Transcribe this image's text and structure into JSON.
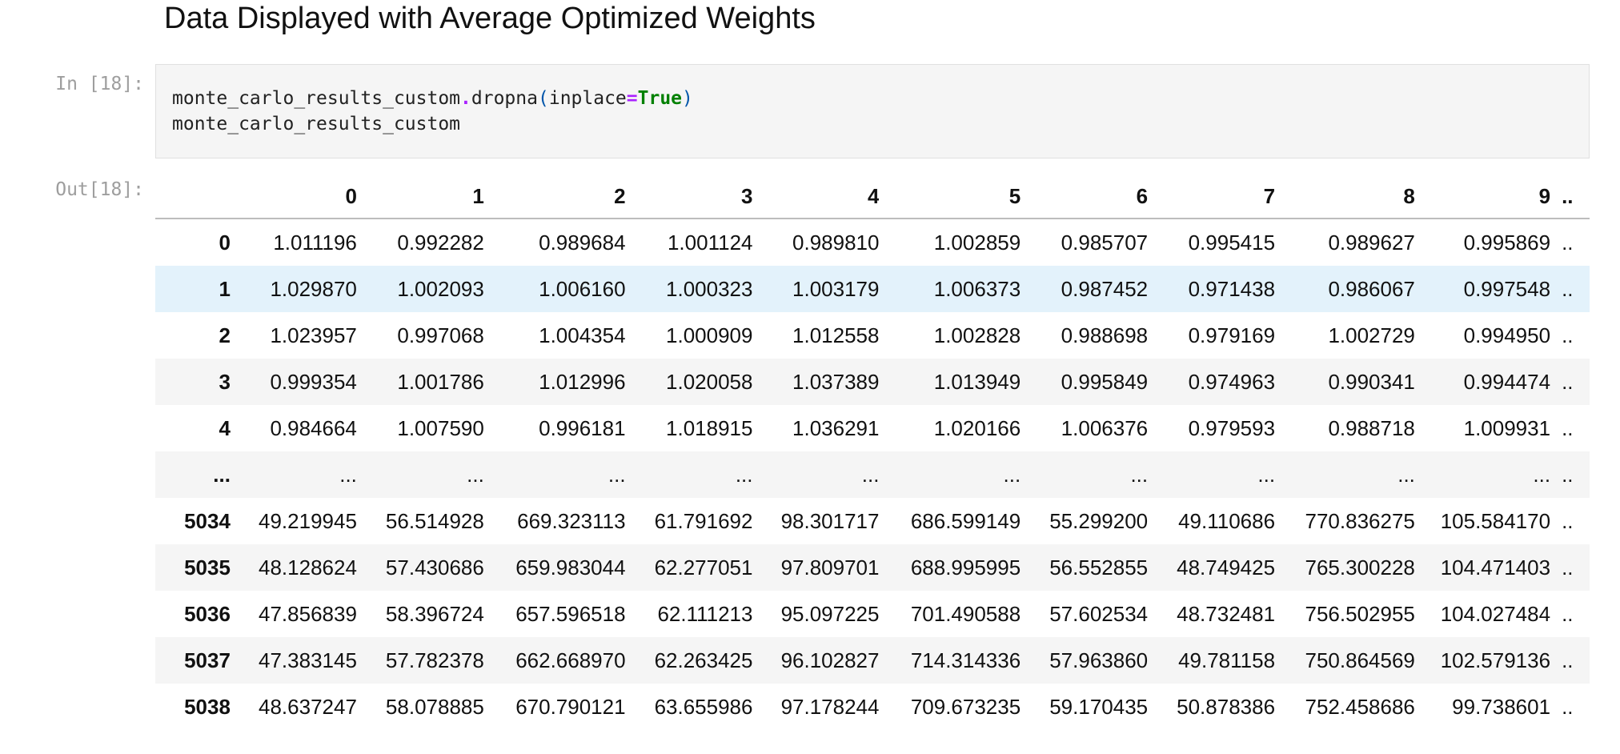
{
  "heading": "Data Displayed with Average Optimized Weights",
  "cells": {
    "input_prompt": "In [18]:",
    "output_prompt": "Out[18]:",
    "code": {
      "line1_obj": "monte_carlo_results_custom",
      "line1_dot": ".",
      "line1_method": "dropna",
      "line1_open": "(",
      "line1_arg": "inplace",
      "line1_eq": "=",
      "line1_kw": "True",
      "line1_close": ")",
      "line2": "monte_carlo_results_custom"
    }
  },
  "table": {
    "columns": [
      "0",
      "1",
      "2",
      "3",
      "4",
      "5",
      "6",
      "7",
      "8",
      "9",
      ".."
    ],
    "rows": [
      {
        "index": "0",
        "values": [
          "1.011196",
          "0.992282",
          "0.989684",
          "1.001124",
          "0.989810",
          "1.002859",
          "0.985707",
          "0.995415",
          "0.989627",
          "0.995869",
          ".."
        ]
      },
      {
        "index": "1",
        "values": [
          "1.029870",
          "1.002093",
          "1.006160",
          "1.000323",
          "1.003179",
          "1.006373",
          "0.987452",
          "0.971438",
          "0.986067",
          "0.997548",
          ".."
        ]
      },
      {
        "index": "2",
        "values": [
          "1.023957",
          "0.997068",
          "1.004354",
          "1.000909",
          "1.012558",
          "1.002828",
          "0.988698",
          "0.979169",
          "1.002729",
          "0.994950",
          ".."
        ]
      },
      {
        "index": "3",
        "values": [
          "0.999354",
          "1.001786",
          "1.012996",
          "1.020058",
          "1.037389",
          "1.013949",
          "0.995849",
          "0.974963",
          "0.990341",
          "0.994474",
          ".."
        ]
      },
      {
        "index": "4",
        "values": [
          "0.984664",
          "1.007590",
          "0.996181",
          "1.018915",
          "1.036291",
          "1.020166",
          "1.006376",
          "0.979593",
          "0.988718",
          "1.009931",
          ".."
        ]
      },
      {
        "index": "...",
        "values": [
          "...",
          "...",
          "...",
          "...",
          "...",
          "...",
          "...",
          "...",
          "...",
          "...",
          ".."
        ]
      },
      {
        "index": "5034",
        "values": [
          "49.219945",
          "56.514928",
          "669.323113",
          "61.791692",
          "98.301717",
          "686.599149",
          "55.299200",
          "49.110686",
          "770.836275",
          "105.584170",
          ".."
        ]
      },
      {
        "index": "5035",
        "values": [
          "48.128624",
          "57.430686",
          "659.983044",
          "62.277051",
          "97.809701",
          "688.995995",
          "56.552855",
          "48.749425",
          "765.300228",
          "104.471403",
          ".."
        ]
      },
      {
        "index": "5036",
        "values": [
          "47.856839",
          "58.396724",
          "657.596518",
          "62.111213",
          "95.097225",
          "701.490588",
          "57.602534",
          "48.732481",
          "756.502955",
          "104.027484",
          ".."
        ]
      },
      {
        "index": "5037",
        "values": [
          "47.383145",
          "57.782378",
          "662.668970",
          "62.263425",
          "96.102827",
          "714.314336",
          "57.963860",
          "49.781158",
          "750.864569",
          "102.579136",
          ".."
        ]
      },
      {
        "index": "5038",
        "values": [
          "48.637247",
          "58.078885",
          "670.790121",
          "63.655986",
          "97.178244",
          "709.673235",
          "59.170435",
          "50.878386",
          "752.458686",
          "99.738601",
          ".."
        ]
      }
    ],
    "hovered_row": "1"
  }
}
